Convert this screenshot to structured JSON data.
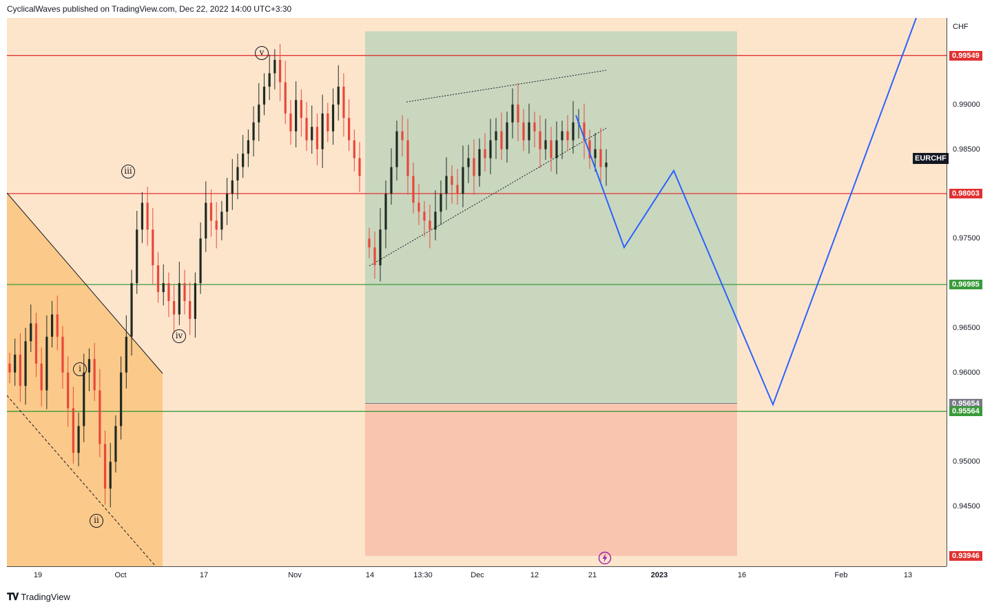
{
  "header": {
    "publisher_text": "CyclicalWaves published on TradingView.com, Dec 22, 2022 14:00 UTC+3:30"
  },
  "footer": {
    "brand": "TradingView",
    "logo_icon": "tradingview-logo-icon"
  },
  "symbol": "EURCHF",
  "currency": "CHF",
  "colors": {
    "background": "#fde5cc",
    "bull_candle": "#1e2a23",
    "bear_candle": "#e8473a",
    "resistance_line": "#e03131",
    "support_line": "#3a9a3a",
    "projection": "#2962ff",
    "target_zone": "#c9d7bf",
    "stop_zone": "#f9c5ae",
    "wedge_zone": "#fbc98a"
  },
  "chart_data": {
    "type": "candlestick",
    "title": "",
    "xlabel": "",
    "ylabel": "",
    "ylim": [
      0.9383,
      0.9997
    ],
    "y_ticks": [
      "0.99000",
      "0.98500",
      "0.97500",
      "0.96500",
      "0.96000",
      "0.95000",
      "0.94500"
    ],
    "x_ticks": [
      {
        "label": "19",
        "bold": false
      },
      {
        "label": "Oct",
        "bold": false
      },
      {
        "label": "17",
        "bold": false
      },
      {
        "label": "Nov",
        "bold": false
      },
      {
        "label": "14",
        "bold": false
      },
      {
        "label": "13:30",
        "bold": false
      },
      {
        "label": "Dec",
        "bold": false
      },
      {
        "label": "12",
        "bold": false
      },
      {
        "label": "21",
        "bold": false
      },
      {
        "label": "2023",
        "bold": true
      },
      {
        "label": "16",
        "bold": false
      },
      {
        "label": "Feb",
        "bold": false
      },
      {
        "label": "13",
        "bold": false
      }
    ],
    "price_labels": [
      {
        "value": "0.99549",
        "color": "#e03131"
      },
      {
        "value": "0.98003",
        "color": "#e03131"
      },
      {
        "value": "0.96985",
        "color": "#3a9a3a"
      },
      {
        "value": "0.95654",
        "color": "#787b86"
      },
      {
        "value": "0.95564",
        "color": "#3a9a3a"
      },
      {
        "value": "0.93946",
        "color": "#e03131"
      }
    ],
    "horizontal_lines": [
      {
        "price": 0.99549,
        "color": "#e03131"
      },
      {
        "price": 0.98003,
        "color": "#e03131"
      },
      {
        "price": 0.96985,
        "color": "#3a9a3a"
      },
      {
        "price": 0.95564,
        "color": "#3a9a3a"
      }
    ],
    "position_tool": {
      "target": 0.9982,
      "entry": 0.95654,
      "stop": 0.93946
    },
    "wave_labels": [
      "i",
      "ii",
      "iii",
      "iv",
      "v"
    ],
    "projection_path": [
      0.9888,
      0.974,
      0.9826,
      0.9564,
      0.9997
    ],
    "series": [
      {
        "segment": "september-october",
        "closes": [
          0.96,
          0.962,
          0.9585,
          0.9635,
          0.9655,
          0.961,
          0.958,
          0.964,
          0.9665,
          0.964,
          0.96,
          0.956,
          0.951,
          0.954,
          0.96,
          0.9615,
          0.958,
          0.952,
          0.947,
          0.95,
          0.954,
          0.96,
          0.964,
          0.97,
          0.976,
          0.979,
          0.976,
          0.972,
          0.969,
          0.97,
          0.968,
          0.9665,
          0.97,
          0.968,
          0.966,
          0.97,
          0.975,
          0.979,
          0.977,
          0.976,
          0.978,
          0.98,
          0.9815,
          0.983,
          0.9845,
          0.986,
          0.988,
          0.99,
          0.992,
          0.9935,
          0.995,
          0.9925,
          0.989,
          0.987,
          0.9905,
          0.9885,
          0.986,
          0.9875,
          0.985,
          0.989,
          0.987,
          0.99,
          0.992,
          0.9885,
          0.986,
          0.984,
          0.982
        ]
      },
      {
        "segment": "november-december",
        "closes": [
          0.974,
          0.972,
          0.976,
          0.98,
          0.983,
          0.987,
          0.986,
          0.982,
          0.979,
          0.978,
          0.977,
          0.976,
          0.978,
          0.98,
          0.982,
          0.981,
          0.98,
          0.983,
          0.984,
          0.982,
          0.985,
          0.984,
          0.986,
          0.987,
          0.985,
          0.988,
          0.99,
          0.988,
          0.986,
          0.988,
          0.987,
          0.985,
          0.986,
          0.984,
          0.986,
          0.987,
          0.986,
          0.988,
          0.988,
          0.986,
          0.984,
          0.985,
          0.983,
          0.9835
        ]
      }
    ]
  }
}
